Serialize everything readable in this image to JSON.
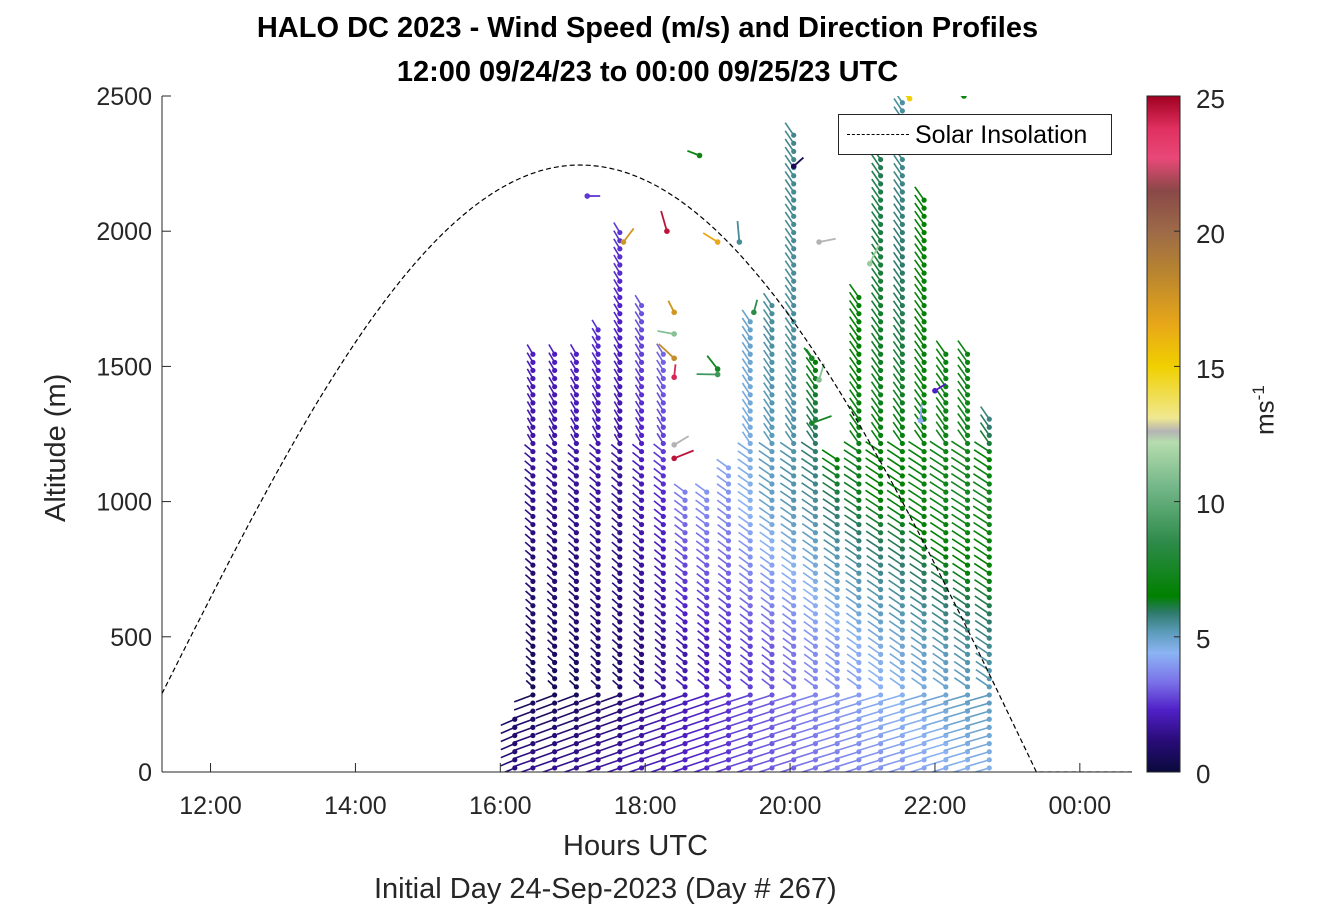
{
  "chart_data": {
    "type": "wind_barb_profile",
    "title": "HALO DC 2023 - Wind Speed (m/s) and Direction Profiles",
    "subtitle": "12:00 09/24/23 to 00:00 09/25/23  UTC",
    "xlabel": "Hours UTC",
    "xlabel2": "Initial Day 24-Sep-2023 (Day # 267)",
    "ylabel": "Altitude (m)",
    "xlim": [
      11.33,
      24.72
    ],
    "ylim": [
      0,
      2500
    ],
    "x_tick_values": [
      12,
      14,
      16,
      18,
      20,
      22,
      24
    ],
    "x_tick_labels": [
      "12:00",
      "14:00",
      "16:00",
      "18:00",
      "20:00",
      "22:00",
      "00:00"
    ],
    "y_ticks": [
      0,
      500,
      1000,
      1500,
      2000,
      2500
    ],
    "legend": {
      "entries": [
        "Solar Insolation"
      ],
      "position": "top-right"
    },
    "solar_insolation": {
      "style": "dashed",
      "color": "#000000",
      "start_hour": 11.33,
      "start_alt": 290,
      "peak_hour": 17.1,
      "peak_alt": 2245,
      "end_hour": 23.4,
      "end_alt": 0,
      "tail_to_hour": 24.72
    },
    "colorbar": {
      "label": "ms",
      "label_exponent": "-1",
      "range": [
        0,
        25
      ],
      "ticks": [
        0,
        5,
        10,
        15,
        20,
        25
      ],
      "stops": [
        {
          "v": 0,
          "c": "#0a0a3c"
        },
        {
          "v": 1.2,
          "c": "#2a0c7a"
        },
        {
          "v": 2.3,
          "c": "#5020c8"
        },
        {
          "v": 3.3,
          "c": "#7a70e8"
        },
        {
          "v": 4.4,
          "c": "#8cb4f4"
        },
        {
          "v": 5.2,
          "c": "#5a9ab8"
        },
        {
          "v": 5.9,
          "c": "#2e7a6a"
        },
        {
          "v": 6.5,
          "c": "#008000"
        },
        {
          "v": 8.5,
          "c": "#2e8b4a"
        },
        {
          "v": 10.5,
          "c": "#72b688"
        },
        {
          "v": 12.2,
          "c": "#b6dcae"
        },
        {
          "v": 12.6,
          "c": "#b4b4b4"
        },
        {
          "v": 13.1,
          "c": "#f0e890"
        },
        {
          "v": 15,
          "c": "#f0d000"
        },
        {
          "v": 16.5,
          "c": "#e8a818"
        },
        {
          "v": 18.5,
          "c": "#b88430"
        },
        {
          "v": 20,
          "c": "#9c6a48"
        },
        {
          "v": 21.5,
          "c": "#8a4848"
        },
        {
          "v": 22.7,
          "c": "#e84878"
        },
        {
          "v": 23.8,
          "c": "#e03060"
        },
        {
          "v": 25,
          "c": "#a00020"
        }
      ]
    },
    "wind_profiles": {
      "profile_hours": [
        16.2,
        16.45,
        16.75,
        17.05,
        17.35,
        17.65,
        17.95,
        18.25,
        18.55,
        18.85,
        19.15,
        19.45,
        19.75,
        20.05,
        20.35,
        20.65,
        20.95,
        21.25,
        21.55,
        21.85,
        22.15,
        22.45,
        22.75
      ],
      "top_altitudes_m": [
        220,
        1570,
        1560,
        1570,
        1660,
        2010,
        1740,
        1560,
        1050,
        1040,
        1150,
        1690,
        1740,
        2360,
        1530,
        1160,
        1760,
        2320,
        2490,
        2140,
        1560,
        1570,
        1320
      ],
      "speed_profiles_m_s": [
        [
          [
            0,
            1.2
          ],
          [
            220,
            0.7
          ]
        ],
        [
          [
            0,
            1.5
          ],
          [
            300,
            0.5
          ],
          [
            1570,
            2.2
          ]
        ],
        [
          [
            0,
            1.5
          ],
          [
            300,
            0.5
          ],
          [
            1560,
            2.2
          ]
        ],
        [
          [
            0,
            1.6
          ],
          [
            300,
            0.6
          ],
          [
            1570,
            2.3
          ]
        ],
        [
          [
            0,
            1.7
          ],
          [
            300,
            0.8
          ],
          [
            1660,
            2.5
          ]
        ],
        [
          [
            0,
            1.8
          ],
          [
            300,
            0.9
          ],
          [
            2010,
            2.6
          ]
        ],
        [
          [
            0,
            2.0
          ],
          [
            400,
            1.2
          ],
          [
            1740,
            3.0
          ]
        ],
        [
          [
            0,
            2.1
          ],
          [
            450,
            1.6
          ],
          [
            1560,
            3.2
          ]
        ],
        [
          [
            0,
            2.3
          ],
          [
            450,
            1.9
          ],
          [
            1050,
            3.6
          ]
        ],
        [
          [
            0,
            2.4
          ],
          [
            450,
            2.1
          ],
          [
            1040,
            3.9
          ]
        ],
        [
          [
            0,
            2.6
          ],
          [
            450,
            2.4
          ],
          [
            1150,
            4.2
          ]
        ],
        [
          [
            0,
            2.8
          ],
          [
            450,
            2.7
          ],
          [
            1000,
            4.5
          ],
          [
            1690,
            5.0
          ]
        ],
        [
          [
            0,
            3.0
          ],
          [
            450,
            3.0
          ],
          [
            1000,
            5.0
          ],
          [
            1740,
            5.5
          ]
        ],
        [
          [
            0,
            3.1
          ],
          [
            450,
            3.4
          ],
          [
            1000,
            5.3
          ],
          [
            2360,
            5.6
          ]
        ],
        [
          [
            0,
            3.3
          ],
          [
            450,
            3.8
          ],
          [
            1000,
            5.5
          ],
          [
            1530,
            6.5
          ]
        ],
        [
          [
            0,
            3.5
          ],
          [
            450,
            4.0
          ],
          [
            1000,
            6.0
          ],
          [
            1160,
            6.5
          ]
        ],
        [
          [
            0,
            3.6
          ],
          [
            450,
            4.3
          ],
          [
            1000,
            6.3
          ],
          [
            1760,
            6.6
          ]
        ],
        [
          [
            0,
            3.8
          ],
          [
            450,
            4.6
          ],
          [
            1000,
            6.5
          ],
          [
            2320,
            6.0
          ]
        ],
        [
          [
            0,
            3.9
          ],
          [
            450,
            4.8
          ],
          [
            1000,
            6.6
          ],
          [
            2490,
            5.4
          ]
        ],
        [
          [
            0,
            4.1
          ],
          [
            450,
            5.0
          ],
          [
            1000,
            6.9
          ],
          [
            2140,
            6.6
          ]
        ],
        [
          [
            0,
            4.2
          ],
          [
            450,
            5.2
          ],
          [
            1000,
            7.2
          ],
          [
            1560,
            6.9
          ]
        ],
        [
          [
            0,
            4.4
          ],
          [
            450,
            5.4
          ],
          [
            1000,
            7.4
          ],
          [
            1570,
            7.0
          ]
        ],
        [
          [
            0,
            4.5
          ],
          [
            450,
            5.5
          ],
          [
            1000,
            7.4
          ],
          [
            1320,
            5.6
          ]
        ]
      ]
    },
    "scattered_outliers": [
      {
        "hour": 17.2,
        "alt": 2130,
        "speed": 2.6
      },
      {
        "hour": 17.7,
        "alt": 1960,
        "speed": 17.5
      },
      {
        "hour": 18.3,
        "alt": 2000,
        "speed": 24.5
      },
      {
        "hour": 18.75,
        "alt": 2280,
        "speed": 7.0
      },
      {
        "hour": 19.0,
        "alt": 1960,
        "speed": 16.5
      },
      {
        "hour": 19.3,
        "alt": 1960,
        "speed": 5.5
      },
      {
        "hour": 20.05,
        "alt": 2240,
        "speed": 0.5
      },
      {
        "hour": 20.4,
        "alt": 1960,
        "speed": 12.6
      },
      {
        "hour": 21.1,
        "alt": 1880,
        "speed": 11.5
      },
      {
        "hour": 18.4,
        "alt": 1700,
        "speed": 17.5
      },
      {
        "hour": 18.4,
        "alt": 1620,
        "speed": 11.0
      },
      {
        "hour": 18.4,
        "alt": 1530,
        "speed": 18.0
      },
      {
        "hour": 18.4,
        "alt": 1460,
        "speed": 24.0
      },
      {
        "hour": 18.4,
        "alt": 1210,
        "speed": 12.6
      },
      {
        "hour": 18.4,
        "alt": 1160,
        "speed": 24.5
      },
      {
        "hour": 19.5,
        "alt": 1700,
        "speed": 8.5
      },
      {
        "hour": 19.0,
        "alt": 1490,
        "speed": 7.5
      },
      {
        "hour": 19.0,
        "alt": 1470,
        "speed": 9.0
      },
      {
        "hour": 20.3,
        "alt": 1530,
        "speed": 7.5
      },
      {
        "hour": 20.4,
        "alt": 1450,
        "speed": 11.0
      },
      {
        "hour": 20.3,
        "alt": 1290,
        "speed": 7.5
      },
      {
        "hour": 22.0,
        "alt": 1410,
        "speed": 2.2
      },
      {
        "hour": 21.8,
        "alt": 1300,
        "speed": 4.2
      },
      {
        "hour": 21.65,
        "alt": 2490,
        "speed": 15.0
      },
      {
        "hour": 22.4,
        "alt": 2500,
        "speed": 7.0
      }
    ]
  }
}
